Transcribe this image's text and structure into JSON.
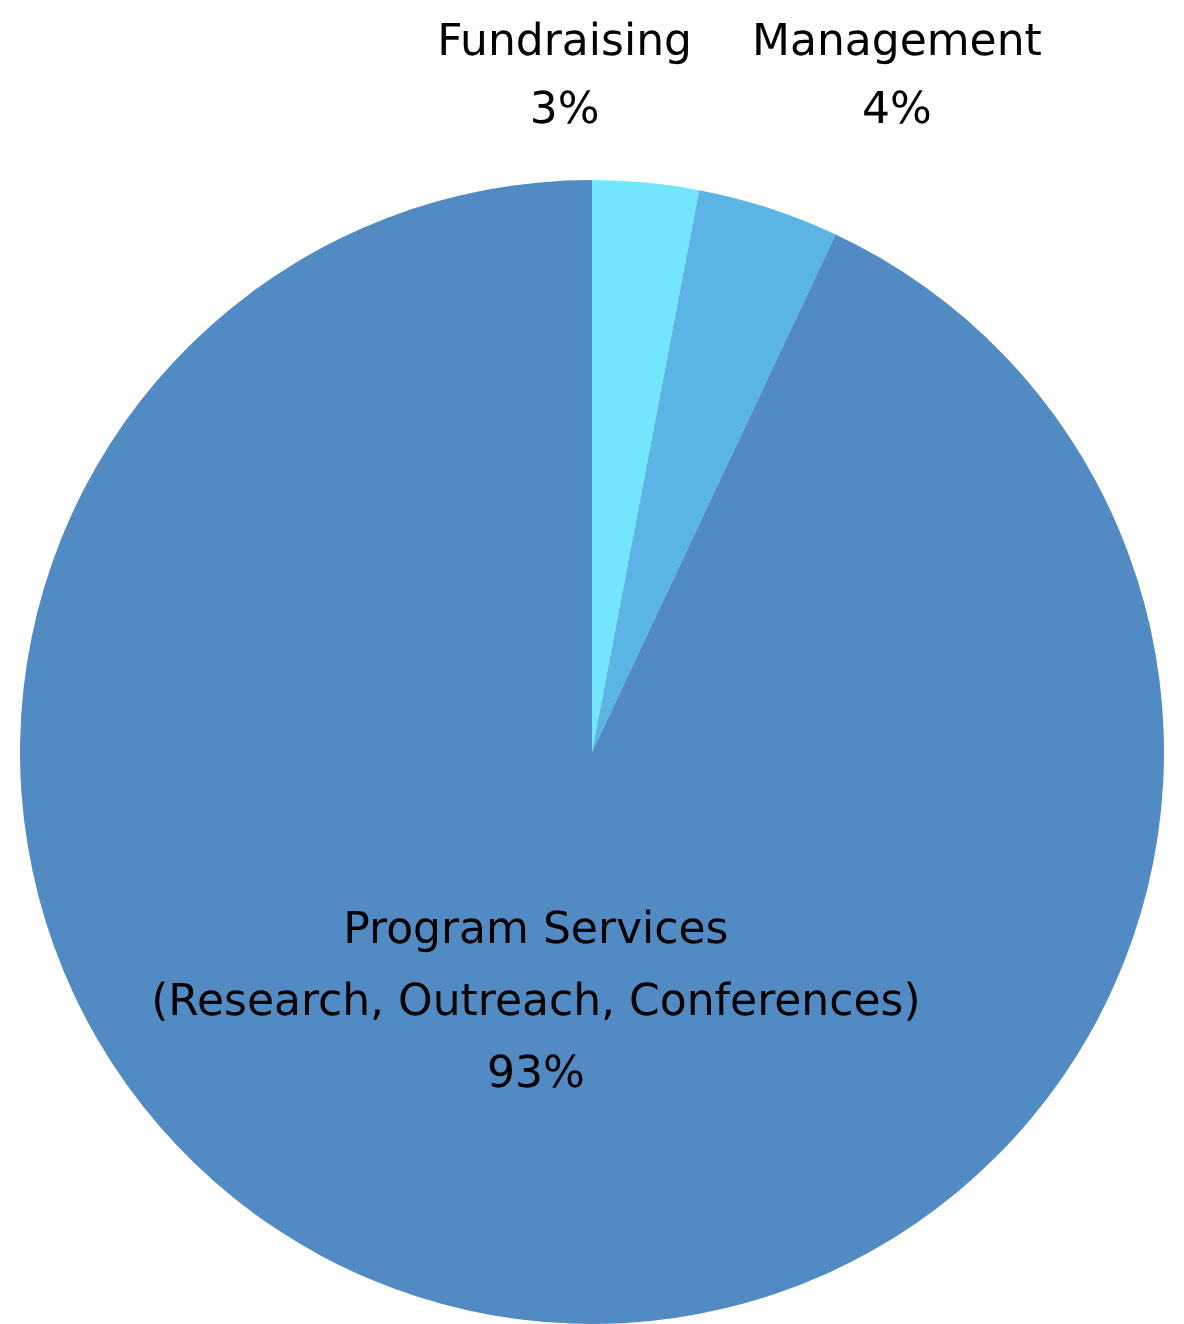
{
  "chart_data": {
    "type": "pie",
    "categories": [
      "Fundraising",
      "Management",
      "Program Services\n(Research, Outreach, Conferences)"
    ],
    "values": [
      3,
      4,
      93
    ],
    "value_labels": [
      "3%",
      "4%",
      "93%"
    ],
    "colors": [
      "#73e6fe",
      "#5ab4e4",
      "#528bc4"
    ],
    "legend": false
  }
}
